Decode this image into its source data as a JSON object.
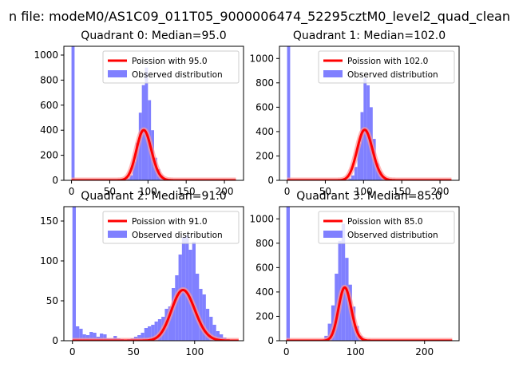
{
  "suptitle": "n file: modeM0/AS1C09_011T05_9000006474_52295cztM0_level2_quad_clean",
  "colors": {
    "hist": "#8080ff",
    "poisson": "#ff0000",
    "poisson_glow": "#ff9999",
    "axes": "#000000"
  },
  "chart_data": [
    {
      "type": "bar",
      "title": "Quadrant 0: Median=95.0",
      "xlim": [
        -10,
        225
      ],
      "ylim": [
        0,
        1070
      ],
      "xticks": [
        0,
        50,
        100,
        150,
        200
      ],
      "yticks": [
        0,
        200,
        400,
        600,
        800,
        1000
      ],
      "legend": {
        "placement": "upper-right",
        "entries": [
          "Poission with 95.0",
          "Observed distribution"
        ]
      },
      "poisson_mean": 95.0,
      "poisson_scale": 9800,
      "poisson_xrange": [
        0,
        215
      ],
      "bin_width": 4,
      "bins": [
        [
          0,
          1070
        ],
        [
          68,
          5
        ],
        [
          72,
          15
        ],
        [
          76,
          40
        ],
        [
          80,
          150
        ],
        [
          84,
          300
        ],
        [
          88,
          540
        ],
        [
          92,
          760
        ],
        [
          96,
          900
        ],
        [
          100,
          640
        ],
        [
          104,
          400
        ],
        [
          108,
          180
        ],
        [
          112,
          90
        ],
        [
          116,
          40
        ],
        [
          120,
          15
        ]
      ]
    },
    {
      "type": "bar",
      "title": "Quadrant 1: Median=102.0",
      "xlim": [
        -10,
        225
      ],
      "ylim": [
        0,
        1100
      ],
      "xticks": [
        0,
        50,
        100,
        150,
        200
      ],
      "yticks": [
        0,
        200,
        400,
        600,
        800,
        1000
      ],
      "legend": {
        "placement": "upper-right",
        "entries": [
          "Poission with 102.0",
          "Observed distribution"
        ]
      },
      "poisson_mean": 102.0,
      "poisson_scale": 10500,
      "poisson_xrange": [
        0,
        215
      ],
      "bin_width": 4,
      "bins": [
        [
          0,
          1100
        ],
        [
          76,
          5
        ],
        [
          80,
          15
        ],
        [
          84,
          40
        ],
        [
          88,
          110
        ],
        [
          92,
          300
        ],
        [
          96,
          560
        ],
        [
          100,
          840
        ],
        [
          104,
          780
        ],
        [
          108,
          600
        ],
        [
          112,
          340
        ],
        [
          116,
          140
        ],
        [
          120,
          70
        ],
        [
          124,
          30
        ],
        [
          128,
          10
        ]
      ]
    },
    {
      "type": "bar",
      "title": "Quadrant 2: Median=91.0",
      "xlim": [
        -7,
        140
      ],
      "ylim": [
        0,
        168
      ],
      "xticks": [
        0,
        50,
        100
      ],
      "yticks": [
        0,
        50,
        100,
        150
      ],
      "legend": {
        "placement": "upper-right",
        "entries": [
          "Poission with 91.0",
          "Observed distribution"
        ]
      },
      "poisson_mean": 91.0,
      "poisson_scale": 1520,
      "poisson_xrange": [
        0,
        136
      ],
      "bin_width": 2.8,
      "bins": [
        [
          0,
          168
        ],
        [
          2.8,
          18
        ],
        [
          5.6,
          15
        ],
        [
          8.4,
          8
        ],
        [
          11.2,
          7
        ],
        [
          14,
          11
        ],
        [
          16.8,
          10
        ],
        [
          19.6,
          5
        ],
        [
          22.4,
          9
        ],
        [
          25.2,
          8
        ],
        [
          28,
          3
        ],
        [
          30.8,
          3
        ],
        [
          33.6,
          6
        ],
        [
          36.4,
          3
        ],
        [
          39.2,
          2
        ],
        [
          42,
          1
        ],
        [
          44.8,
          2
        ],
        [
          47.6,
          3
        ],
        [
          50.4,
          5
        ],
        [
          53.2,
          7
        ],
        [
          56,
          10
        ],
        [
          58.8,
          16
        ],
        [
          61.6,
          18
        ],
        [
          64.4,
          20
        ],
        [
          67.2,
          24
        ],
        [
          70,
          27
        ],
        [
          72.8,
          30
        ],
        [
          75.6,
          40
        ],
        [
          78.4,
          43
        ],
        [
          81.2,
          66
        ],
        [
          84,
          82
        ],
        [
          86.8,
          108
        ],
        [
          89.6,
          130
        ],
        [
          92.4,
          132
        ],
        [
          95.2,
          114
        ],
        [
          98,
          124
        ],
        [
          100.8,
          84
        ],
        [
          103.6,
          65
        ],
        [
          106.4,
          58
        ],
        [
          109.2,
          40
        ],
        [
          112,
          30
        ],
        [
          114.8,
          20
        ],
        [
          117.6,
          12
        ],
        [
          120.4,
          8
        ],
        [
          123.2,
          4
        ],
        [
          126,
          2
        ]
      ]
    },
    {
      "type": "bar",
      "title": "Quadrant 3: Median=85.0",
      "xlim": [
        -10,
        250
      ],
      "ylim": [
        0,
        1100
      ],
      "xticks": [
        0,
        100,
        200
      ],
      "yticks": [
        0,
        200,
        400,
        600,
        800,
        1000
      ],
      "legend": {
        "placement": "upper-right",
        "entries": [
          "Poission with 85.0",
          "Observed distribution"
        ]
      },
      "poisson_mean": 85.0,
      "poisson_scale": 10100,
      "poisson_xrange": [
        0,
        240
      ],
      "bin_width": 5,
      "bins": [
        [
          0,
          1100
        ],
        [
          50,
          10
        ],
        [
          55,
          40
        ],
        [
          60,
          140
        ],
        [
          65,
          290
        ],
        [
          70,
          550
        ],
        [
          75,
          820
        ],
        [
          80,
          960
        ],
        [
          85,
          680
        ],
        [
          90,
          460
        ],
        [
          95,
          280
        ],
        [
          100,
          120
        ],
        [
          105,
          40
        ],
        [
          110,
          10
        ]
      ]
    }
  ]
}
